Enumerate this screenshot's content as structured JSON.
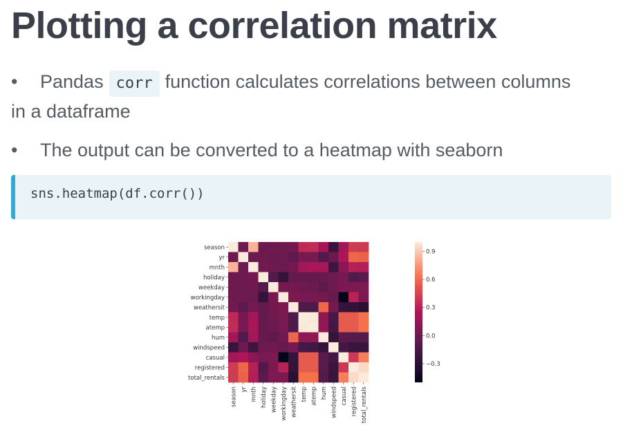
{
  "slide": {
    "title": "Plotting a correlation matrix",
    "bullet1": {
      "before": "Pandas",
      "code": "corr",
      "after": "function calculates correlations between columns",
      "wrap": "in a dataframe"
    },
    "bullet2": "The output can be converted to a heatmap with seaborn",
    "code_block": "sns.heatmap(df.corr())"
  },
  "chart_data": {
    "type": "heatmap",
    "labels": [
      "season",
      "yr",
      "mnth",
      "holiday",
      "weekday",
      "workingday",
      "weathersit",
      "temp",
      "atemp",
      "hum",
      "windspeed",
      "casual",
      "registered",
      "total_rentals"
    ],
    "matrix": [
      [
        1.0,
        -0.0,
        0.83,
        -0.01,
        -0.0,
        0.01,
        0.02,
        0.33,
        0.34,
        0.21,
        -0.23,
        0.21,
        0.41,
        0.41
      ],
      [
        -0.0,
        1.0,
        -0.0,
        0.01,
        -0.01,
        -0.0,
        -0.05,
        0.05,
        0.05,
        -0.11,
        -0.01,
        0.25,
        0.59,
        0.57
      ],
      [
        0.83,
        -0.0,
        1.0,
        0.02,
        0.01,
        -0.01,
        0.04,
        0.22,
        0.23,
        0.22,
        -0.21,
        0.12,
        0.29,
        0.28
      ],
      [
        -0.01,
        0.01,
        0.02,
        1.0,
        -0.1,
        -0.25,
        -0.03,
        -0.03,
        -0.03,
        -0.02,
        0.01,
        0.05,
        -0.11,
        -0.07
      ],
      [
        -0.0,
        -0.01,
        0.01,
        -0.1,
        1.0,
        0.04,
        0.03,
        -0.0,
        -0.01,
        -0.05,
        0.01,
        0.06,
        0.06,
        0.07
      ],
      [
        0.01,
        -0.0,
        -0.01,
        -0.25,
        0.04,
        1.0,
        0.06,
        0.05,
        0.05,
        0.02,
        -0.02,
        -0.52,
        0.3,
        0.06
      ],
      [
        0.02,
        -0.05,
        0.04,
        -0.03,
        0.03,
        0.06,
        1.0,
        -0.12,
        -0.12,
        0.59,
        0.04,
        -0.25,
        -0.26,
        -0.3
      ],
      [
        0.33,
        0.05,
        0.22,
        -0.03,
        -0.0,
        0.05,
        -0.12,
        1.0,
        0.99,
        0.13,
        -0.16,
        0.54,
        0.54,
        0.63
      ],
      [
        0.34,
        0.05,
        0.23,
        -0.03,
        -0.01,
        0.05,
        -0.12,
        0.99,
        1.0,
        0.14,
        -0.18,
        0.54,
        0.54,
        0.63
      ],
      [
        0.21,
        -0.11,
        0.22,
        -0.02,
        -0.05,
        0.02,
        0.59,
        0.13,
        0.14,
        1.0,
        -0.25,
        -0.08,
        -0.09,
        -0.1
      ],
      [
        -0.23,
        -0.01,
        -0.21,
        0.01,
        0.01,
        -0.02,
        0.04,
        -0.16,
        -0.18,
        -0.25,
        1.0,
        -0.17,
        -0.22,
        -0.23
      ],
      [
        0.21,
        0.25,
        0.12,
        0.05,
        0.06,
        -0.52,
        -0.25,
        0.54,
        0.54,
        -0.08,
        -0.17,
        1.0,
        0.4,
        0.67
      ],
      [
        0.41,
        0.59,
        0.29,
        -0.11,
        0.06,
        0.3,
        -0.26,
        0.54,
        0.54,
        -0.09,
        -0.22,
        0.4,
        1.0,
        0.95
      ],
      [
        0.41,
        0.57,
        0.28,
        -0.07,
        0.07,
        0.06,
        -0.3,
        0.63,
        0.63,
        -0.1,
        -0.23,
        0.67,
        0.95,
        1.0
      ]
    ],
    "vmin": -0.5,
    "vmax": 1.0,
    "colorbar_ticks": [
      0.9,
      0.6,
      0.3,
      0.0,
      -0.3
    ],
    "colorbar_tick_labels": [
      "0.9",
      "0.6",
      "0.3",
      "0.0",
      "−0.3"
    ]
  }
}
